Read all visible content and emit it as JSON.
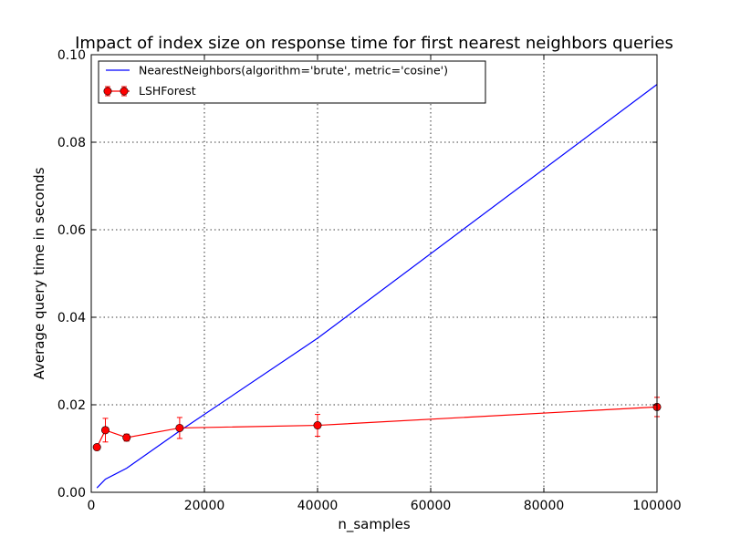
{
  "chart_data": {
    "type": "line",
    "title": "Impact of index size on response time for first nearest neighbors queries",
    "xlabel": "n_samples",
    "ylabel": "Average query time in seconds",
    "xlim": [
      0,
      100000
    ],
    "ylim": [
      0.0,
      0.1
    ],
    "xticks": [
      0,
      20000,
      40000,
      60000,
      80000,
      100000
    ],
    "xtick_labels": [
      "0",
      "20000",
      "40000",
      "60000",
      "80000",
      "100000"
    ],
    "yticks": [
      0.0,
      0.02,
      0.04,
      0.06,
      0.08,
      0.1
    ],
    "ytick_labels": [
      "0.00",
      "0.02",
      "0.04",
      "0.06",
      "0.08",
      "0.10"
    ],
    "grid": true,
    "legend_position": "top-left",
    "series": [
      {
        "name": "NearestNeighbors(algorithm='brute', metric='cosine')",
        "color": "#0000ff",
        "marker": "none",
        "x": [
          1000,
          2500,
          6250,
          15625,
          40000,
          100000
        ],
        "y": [
          0.001,
          0.003,
          0.0055,
          0.014,
          0.0352,
          0.0932
        ]
      },
      {
        "name": "LSHForest",
        "color": "#ff0000",
        "marker": "circle",
        "error_bars": true,
        "x": [
          1000,
          2500,
          6250,
          15625,
          40000,
          100000
        ],
        "y": [
          0.0103,
          0.0142,
          0.0125,
          0.0147,
          0.0153,
          0.0195
        ],
        "yerr": [
          0.0005,
          0.0027,
          0.0008,
          0.0024,
          0.0025,
          0.0022
        ]
      }
    ]
  }
}
